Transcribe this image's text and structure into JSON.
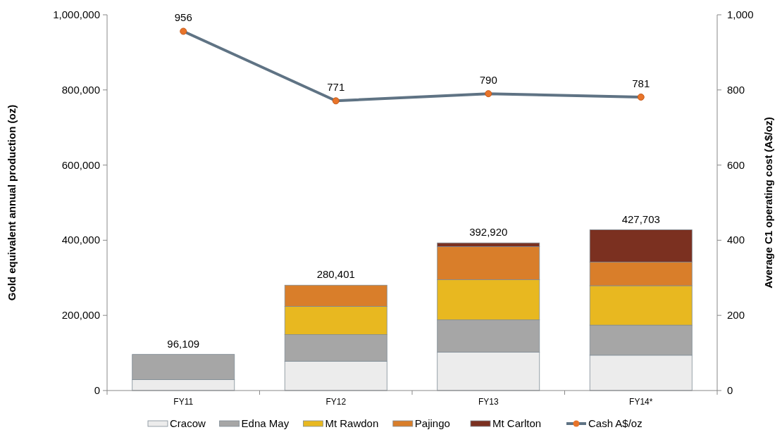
{
  "chart_data": {
    "type": "bar",
    "stacked": true,
    "categories": [
      "FY11",
      "FY12",
      "FY13",
      "FY14*"
    ],
    "ylabel": "Gold equivalent annual  production (oz)",
    "y2label": "Average C1 operating cost (A$/oz)",
    "ylim": [
      0,
      1000000
    ],
    "yticks": [
      {
        "value": 0,
        "label": "0"
      },
      {
        "value": 200000,
        "label": "200,000"
      },
      {
        "value": 400000,
        "label": "400,000"
      },
      {
        "value": 600000,
        "label": "600,000"
      },
      {
        "value": 800000,
        "label": "800,000"
      },
      {
        "value": 1000000,
        "label": "1,000,000"
      }
    ],
    "y2lim": [
      0,
      1000
    ],
    "y2ticks": [
      0,
      200,
      400,
      600,
      800,
      {
        "value": 1000,
        "label": "1,000"
      }
    ],
    "series": [
      {
        "name": "Cracow",
        "color": "#ececec",
        "values": [
          29000,
          78000,
          102000,
          94000
        ]
      },
      {
        "name": "Edna May",
        "color": "#a6a6a6",
        "values": [
          67109,
          71000,
          86000,
          80000
        ]
      },
      {
        "name": "Mt Rawdon",
        "color": "#e8b820",
        "values": [
          null,
          75000,
          107000,
          105000
        ]
      },
      {
        "name": "Pajingo",
        "color": "#d97e2a",
        "values": [
          null,
          56401,
          88000,
          63000
        ]
      },
      {
        "name": "Mt Carlton",
        "color": "#7b3020",
        "values": [
          null,
          null,
          9920,
          85703
        ]
      },
      {
        "name": "Cash A$/oz",
        "type": "line",
        "axis": "y2",
        "color": "#5f7384",
        "marker": "circle",
        "values": [
          956,
          771,
          790,
          781
        ],
        "value_labels": [
          "956",
          "771",
          "790",
          "781"
        ]
      }
    ],
    "totals": [
      "96,109",
      "280,401",
      "392,920",
      "427,703"
    ],
    "legend": "bottom",
    "grid": false
  }
}
